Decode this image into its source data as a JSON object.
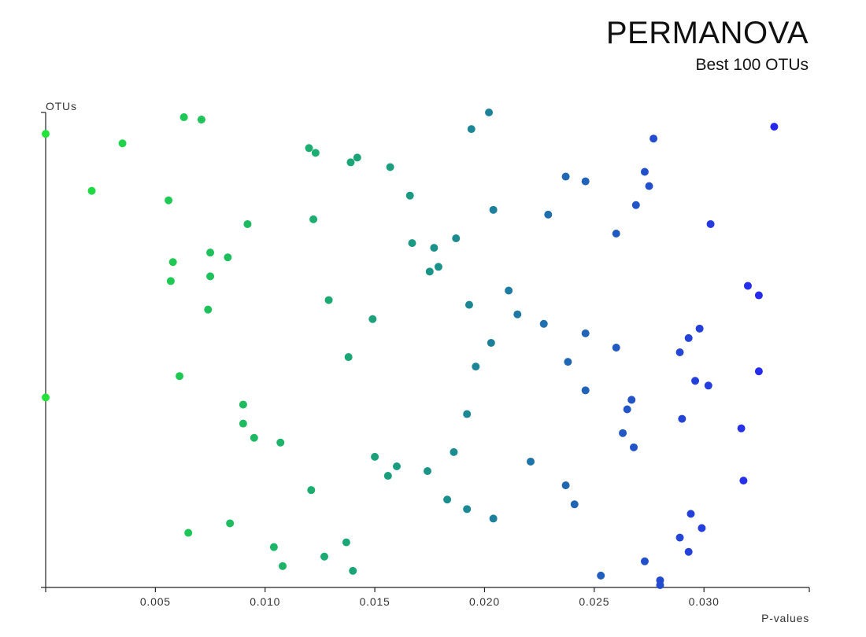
{
  "chart_data": {
    "type": "scatter",
    "title": "PERMANOVA",
    "subtitle": "Best 100 OTUs",
    "xlabel": "P-values",
    "ylabel": "OTUs",
    "xlim": [
      0,
      0.0348
    ],
    "ylim": [
      0,
      100
    ],
    "xticks": [
      0.005,
      0.01,
      0.015,
      0.02,
      0.025,
      0.03
    ],
    "xtick_labels": [
      "0.005",
      "0.010",
      "0.015",
      "0.020",
      "0.025",
      "0.030"
    ],
    "color_scale": [
      "#22e23b",
      "#1a9a82",
      "#2727f3"
    ],
    "points": [
      {
        "x": 0.0202,
        "y": 100
      },
      {
        "x": 0.0063,
        "y": 99
      },
      {
        "x": 0.0071,
        "y": 98.5
      },
      {
        "x": 0.0332,
        "y": 97
      },
      {
        "x": 0.0194,
        "y": 96.5
      },
      {
        "x": 0.0,
        "y": 95.5
      },
      {
        "x": 0.0277,
        "y": 94.5
      },
      {
        "x": 0.0035,
        "y": 93.5
      },
      {
        "x": 0.012,
        "y": 92.5
      },
      {
        "x": 0.0123,
        "y": 91.5
      },
      {
        "x": 0.0142,
        "y": 90.5
      },
      {
        "x": 0.0139,
        "y": 89.5
      },
      {
        "x": 0.0157,
        "y": 88.5
      },
      {
        "x": 0.0273,
        "y": 87.5
      },
      {
        "x": 0.0237,
        "y": 86.5
      },
      {
        "x": 0.0246,
        "y": 85.5
      },
      {
        "x": 0.0275,
        "y": 84.5
      },
      {
        "x": 0.0021,
        "y": 83.5
      },
      {
        "x": 0.0166,
        "y": 82.5
      },
      {
        "x": 0.0056,
        "y": 81.5
      },
      {
        "x": 0.0269,
        "y": 80.5
      },
      {
        "x": 0.0204,
        "y": 79.5
      },
      {
        "x": 0.0229,
        "y": 78.5
      },
      {
        "x": 0.0122,
        "y": 77.5
      },
      {
        "x": 0.0303,
        "y": 76.5
      },
      {
        "x": 0.0092,
        "y": 76.5
      },
      {
        "x": 0.026,
        "y": 74.5
      },
      {
        "x": 0.0187,
        "y": 73.5
      },
      {
        "x": 0.0167,
        "y": 72.5
      },
      {
        "x": 0.0177,
        "y": 71.5
      },
      {
        "x": 0.0075,
        "y": 70.5
      },
      {
        "x": 0.0083,
        "y": 69.5
      },
      {
        "x": 0.0058,
        "y": 68.5
      },
      {
        "x": 0.0179,
        "y": 67.5
      },
      {
        "x": 0.0175,
        "y": 66.5
      },
      {
        "x": 0.0075,
        "y": 65.5
      },
      {
        "x": 0.0057,
        "y": 64.5
      },
      {
        "x": 0.032,
        "y": 63.5
      },
      {
        "x": 0.0211,
        "y": 62.5
      },
      {
        "x": 0.0325,
        "y": 61.5
      },
      {
        "x": 0.0129,
        "y": 60.5
      },
      {
        "x": 0.0193,
        "y": 59.5
      },
      {
        "x": 0.0074,
        "y": 58.5
      },
      {
        "x": 0.0215,
        "y": 57.5
      },
      {
        "x": 0.0149,
        "y": 56.5
      },
      {
        "x": 0.0227,
        "y": 55.5
      },
      {
        "x": 0.0298,
        "y": 54.5
      },
      {
        "x": 0.0246,
        "y": 53.5
      },
      {
        "x": 0.0293,
        "y": 52.5
      },
      {
        "x": 0.0203,
        "y": 51.5
      },
      {
        "x": 0.026,
        "y": 50.5
      },
      {
        "x": 0.0289,
        "y": 49.5
      },
      {
        "x": 0.0138,
        "y": 48.5
      },
      {
        "x": 0.0238,
        "y": 47.5
      },
      {
        "x": 0.0196,
        "y": 46.5
      },
      {
        "x": 0.0325,
        "y": 45.5
      },
      {
        "x": 0.0061,
        "y": 44.5
      },
      {
        "x": 0.0296,
        "y": 43.5
      },
      {
        "x": 0.0302,
        "y": 42.5
      },
      {
        "x": 0.0246,
        "y": 41.5
      },
      {
        "x": 0.0,
        "y": 40.0
      },
      {
        "x": 0.0267,
        "y": 39.5
      },
      {
        "x": 0.009,
        "y": 38.5
      },
      {
        "x": 0.0265,
        "y": 37.5
      },
      {
        "x": 0.0192,
        "y": 36.5
      },
      {
        "x": 0.029,
        "y": 35.5
      },
      {
        "x": 0.009,
        "y": 34.5
      },
      {
        "x": 0.0317,
        "y": 33.5
      },
      {
        "x": 0.0263,
        "y": 32.5
      },
      {
        "x": 0.0095,
        "y": 31.5
      },
      {
        "x": 0.0107,
        "y": 30.5
      },
      {
        "x": 0.0268,
        "y": 29.5
      },
      {
        "x": 0.0186,
        "y": 28.5
      },
      {
        "x": 0.015,
        "y": 27.5
      },
      {
        "x": 0.0221,
        "y": 26.5
      },
      {
        "x": 0.016,
        "y": 25.5
      },
      {
        "x": 0.0174,
        "y": 24.5
      },
      {
        "x": 0.0156,
        "y": 23.5
      },
      {
        "x": 0.0318,
        "y": 22.5
      },
      {
        "x": 0.0237,
        "y": 21.5
      },
      {
        "x": 0.0121,
        "y": 20.5
      },
      {
        "x": 0.0183,
        "y": 18.5
      },
      {
        "x": 0.0241,
        "y": 17.5
      },
      {
        "x": 0.0192,
        "y": 16.5
      },
      {
        "x": 0.0204,
        "y": 14.5
      },
      {
        "x": 0.0294,
        "y": 15.5
      },
      {
        "x": 0.0084,
        "y": 13.5
      },
      {
        "x": 0.0299,
        "y": 12.5
      },
      {
        "x": 0.0065,
        "y": 11.5
      },
      {
        "x": 0.0289,
        "y": 10.5
      },
      {
        "x": 0.0137,
        "y": 9.5
      },
      {
        "x": 0.0104,
        "y": 8.5
      },
      {
        "x": 0.0293,
        "y": 7.5
      },
      {
        "x": 0.0127,
        "y": 6.5
      },
      {
        "x": 0.0273,
        "y": 5.5
      },
      {
        "x": 0.0108,
        "y": 4.5
      },
      {
        "x": 0.014,
        "y": 3.5
      },
      {
        "x": 0.0253,
        "y": 2.5
      },
      {
        "x": 0.028,
        "y": 1.5
      },
      {
        "x": 0.028,
        "y": 0.5
      }
    ]
  }
}
